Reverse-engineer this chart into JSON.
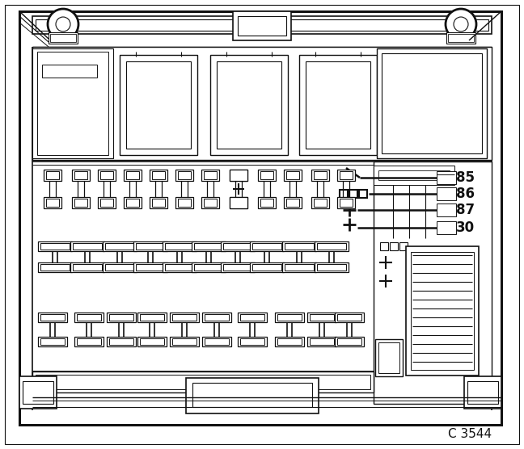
{
  "bg": "#ffffff",
  "lc": "#111111",
  "caption": "C 3544",
  "lw": 1.0,
  "lw2": 1.8,
  "figsize": [
    6.48,
    5.56
  ],
  "dpi": 100
}
